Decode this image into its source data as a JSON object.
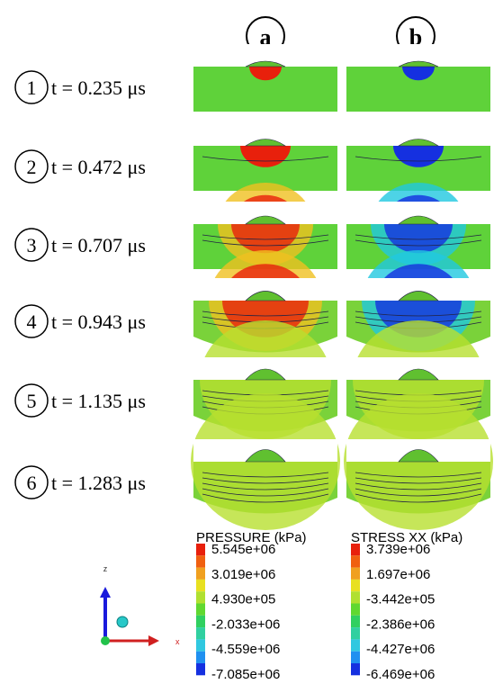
{
  "columns": [
    {
      "label": "a"
    },
    {
      "label": "b"
    }
  ],
  "rows": [
    {
      "number": "1",
      "time": "t = 0.235 μs"
    },
    {
      "number": "2",
      "time": "t = 0.472 μs"
    },
    {
      "number": "3",
      "time": "t = 0.707 μs"
    },
    {
      "number": "4",
      "time": "t = 0.943 μs"
    },
    {
      "number": "5",
      "time": "t = 1.135 μs"
    },
    {
      "number": "6",
      "time": "t = 1.283 μs"
    }
  ],
  "legends": [
    {
      "title": "PRESSURE (kPa)",
      "labels": [
        "5.545e+06",
        "3.019e+06",
        "4.930e+05",
        "-2.033e+06",
        "-4.559e+06",
        "-7.085e+06"
      ]
    },
    {
      "title": "STRESS XX (kPa)",
      "labels": [
        "3.739e+06",
        "1.697e+06",
        "-3.442e+05",
        "-2.386e+06",
        "-4.427e+06",
        "-6.469e+06"
      ]
    }
  ],
  "axes": {
    "z": "z",
    "x": "x"
  }
}
